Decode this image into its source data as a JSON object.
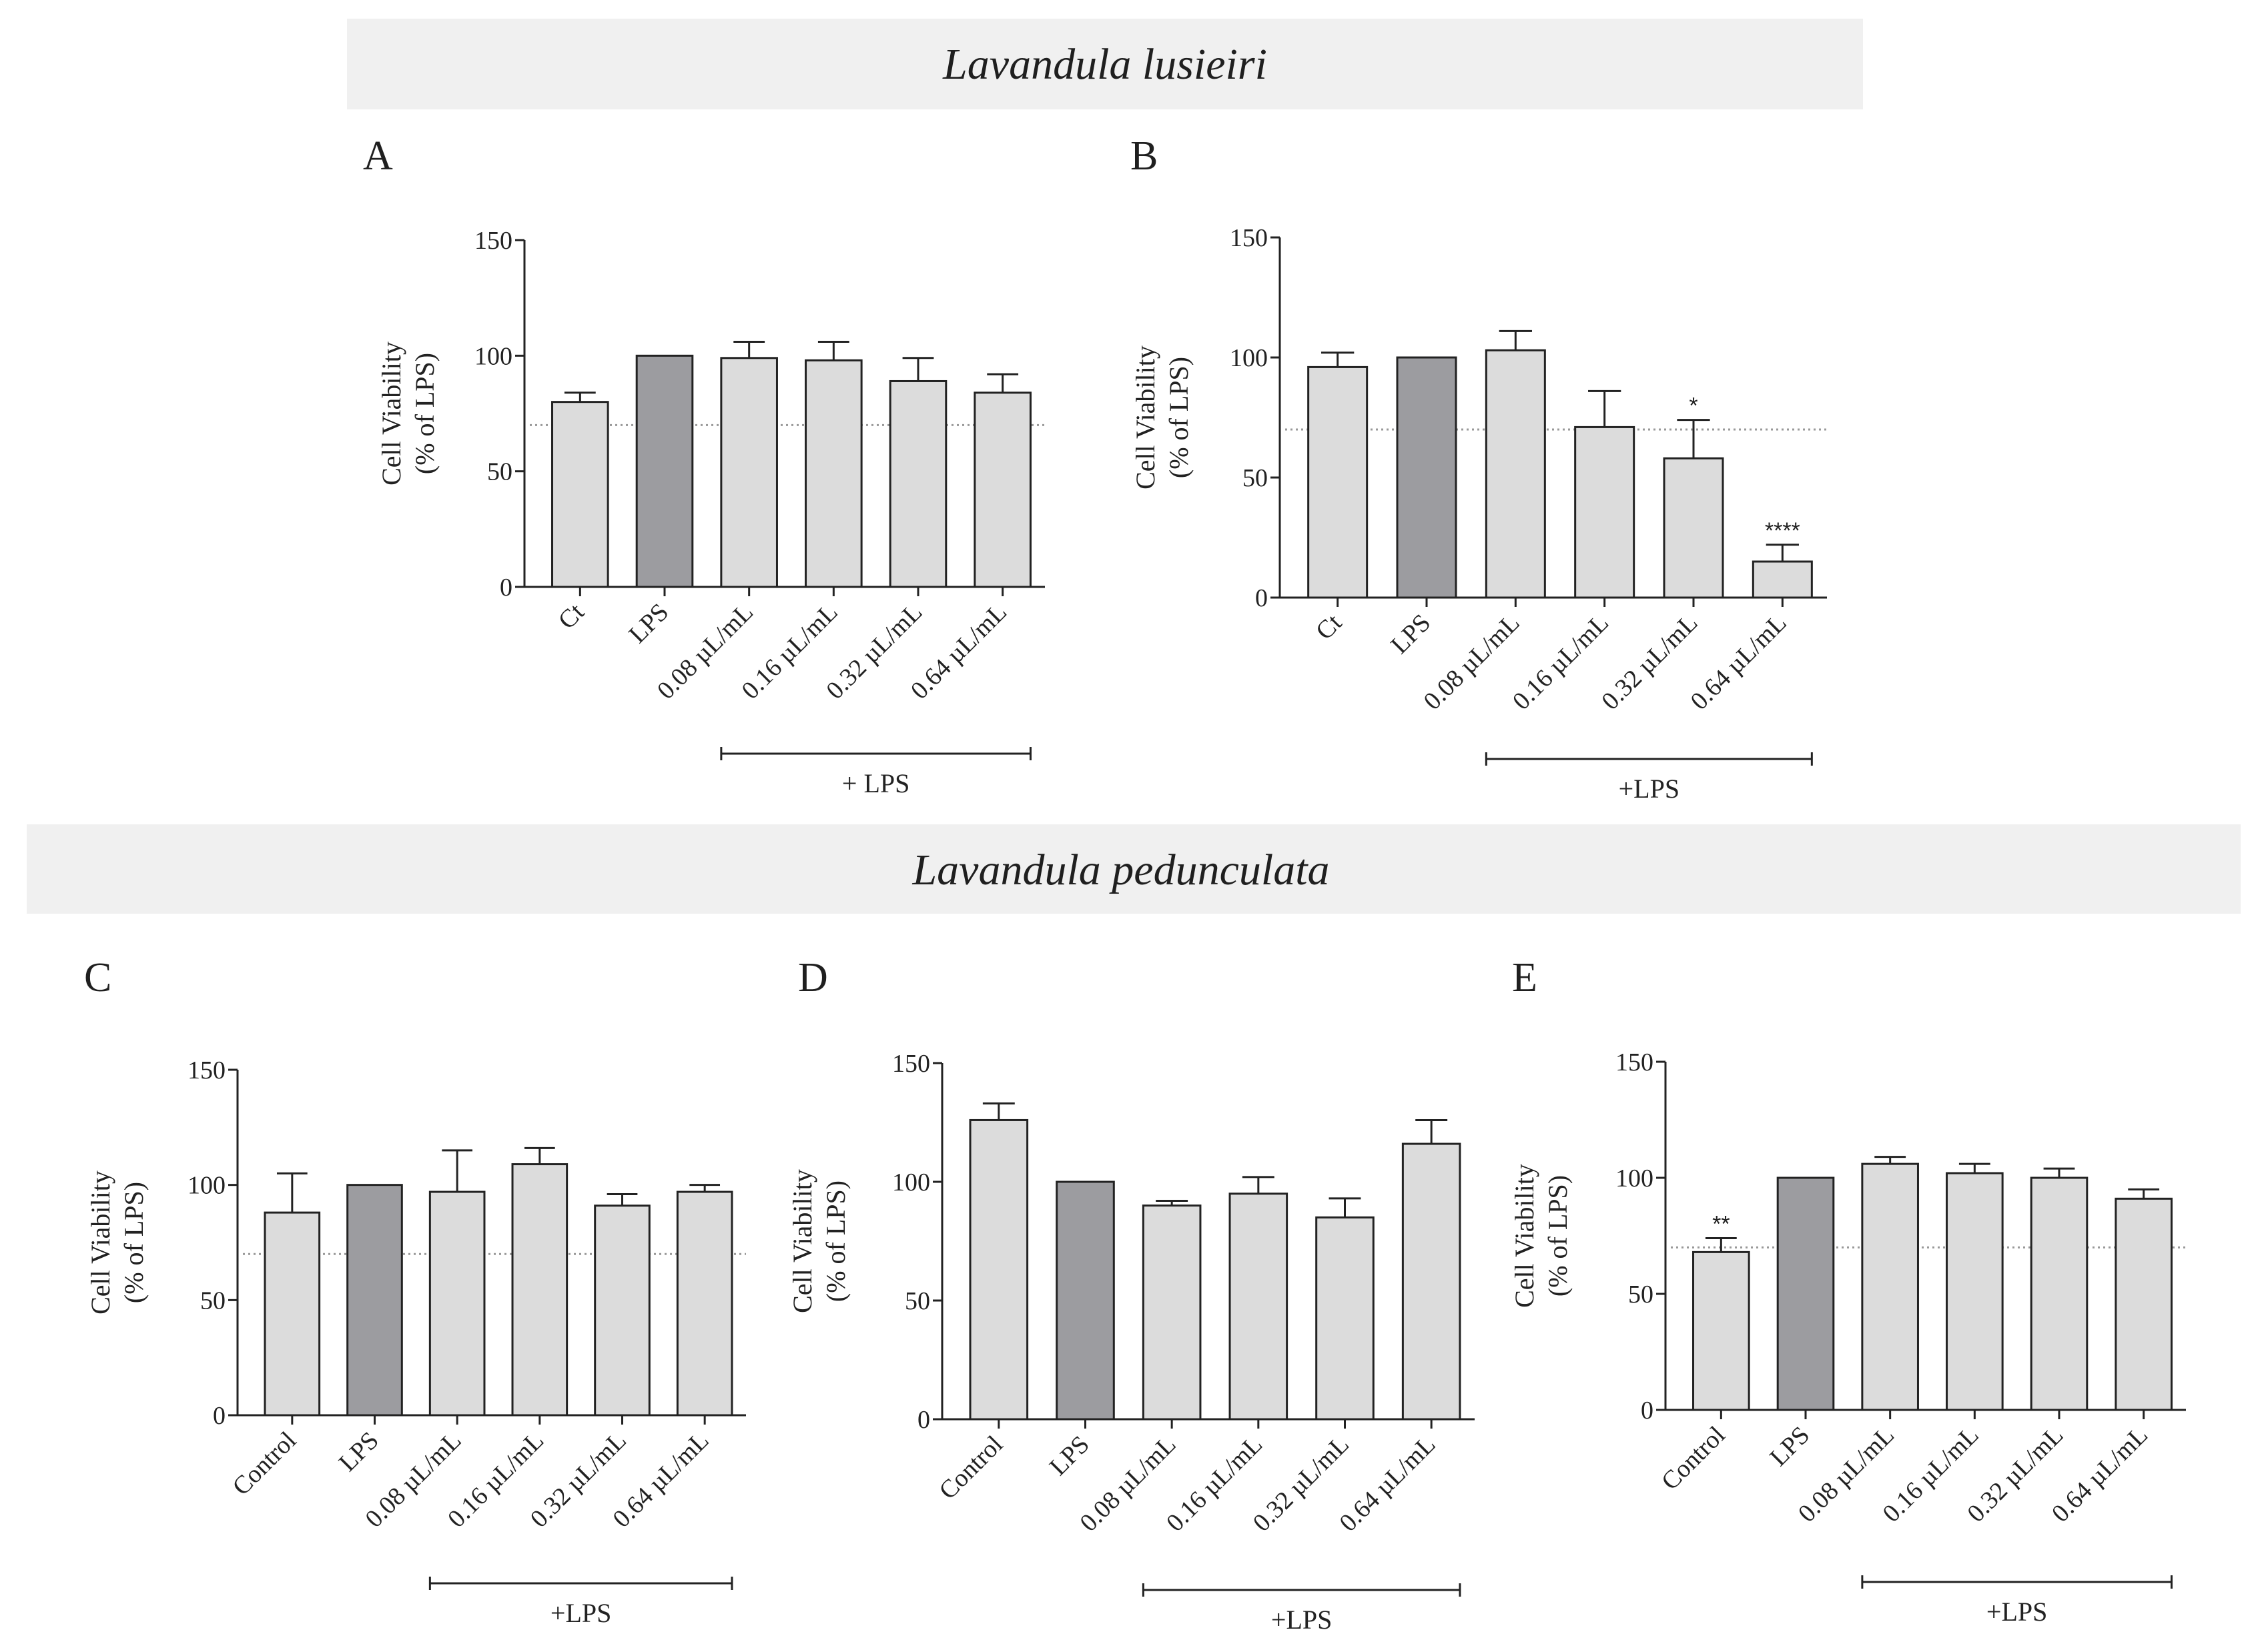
{
  "sections": [
    {
      "title": "Lavandula lusieiri",
      "colors": {
        "band": "#f0f0f0"
      }
    },
    {
      "title": "Lavandula pedunculata",
      "colors": {
        "band": "#f0f0f0"
      }
    }
  ],
  "colors": {
    "bar_light": "#dcdcdc",
    "bar_dark": "#9c9ca0",
    "axis": "#222222",
    "ref_line": "#999999"
  },
  "chart_data": [
    {
      "panel": "A",
      "type": "bar",
      "categories": [
        "Ct",
        "LPS",
        "0.08 µL/mL",
        "0.16 µL/mL",
        "0.32 µL/mL",
        "0.64 µL/mL"
      ],
      "values": [
        80,
        100,
        99,
        98,
        89,
        84
      ],
      "errors": [
        4,
        0,
        7,
        8,
        10,
        8
      ],
      "significance": [
        "",
        "",
        "",
        "",
        "",
        ""
      ],
      "dark_index": 1,
      "ylabel_line1": "Cell Viability",
      "ylabel_line2": "(% of LPS)",
      "ylim": [
        0,
        150
      ],
      "yticks": [
        0,
        50,
        100,
        150
      ],
      "reference_line": 70,
      "group_label": "+ LPS",
      "group_range": [
        2,
        5
      ]
    },
    {
      "panel": "B",
      "type": "bar",
      "categories": [
        "Ct",
        "LPS",
        "0.08 µL/mL",
        "0.16 µL/mL",
        "0.32 µL/mL",
        "0.64 µL/mL"
      ],
      "values": [
        96,
        100,
        103,
        71,
        58,
        15
      ],
      "errors": [
        6,
        0,
        8,
        15,
        16,
        7
      ],
      "significance": [
        "",
        "",
        "",
        "",
        "*",
        "****"
      ],
      "dark_index": 1,
      "ylabel_line1": "Cell Viability",
      "ylabel_line2": "(% of LPS)",
      "ylim": [
        0,
        150
      ],
      "yticks": [
        0,
        50,
        100,
        150
      ],
      "reference_line": 70,
      "group_label": "+LPS",
      "group_range": [
        2,
        5
      ]
    },
    {
      "panel": "C",
      "type": "bar",
      "categories": [
        "Control",
        "LPS",
        "0.08 µL/mL",
        "0.16 µL/mL",
        "0.32 µL/mL",
        "0.64 µL/mL"
      ],
      "values": [
        88,
        100,
        97,
        109,
        91,
        97
      ],
      "errors": [
        17,
        0,
        18,
        7,
        5,
        3
      ],
      "significance": [
        "",
        "",
        "",
        "",
        "",
        ""
      ],
      "dark_index": 1,
      "ylabel_line1": "Cell Viability",
      "ylabel_line2": "(% of LPS)",
      "ylim": [
        0,
        150
      ],
      "yticks": [
        0,
        50,
        100,
        150
      ],
      "reference_line": 70,
      "group_label": "+LPS",
      "group_range": [
        2,
        5
      ]
    },
    {
      "panel": "D",
      "type": "bar",
      "categories": [
        "Control",
        "LPS",
        "0.08 µL/mL",
        "0.16 µL/mL",
        "0.32 µL/mL",
        "0.64 µL/mL"
      ],
      "values": [
        126,
        100,
        90,
        95,
        85,
        116
      ],
      "errors": [
        7,
        0,
        2,
        7,
        8,
        10
      ],
      "significance": [
        "",
        "",
        "",
        "",
        "",
        ""
      ],
      "dark_index": 1,
      "ylabel_line1": "Cell Viability",
      "ylabel_line2": "(% of LPS)",
      "ylim": [
        0,
        150
      ],
      "yticks": [
        0,
        50,
        100,
        150
      ],
      "reference_line": null,
      "group_label": "+LPS",
      "group_range": [
        2,
        5
      ]
    },
    {
      "panel": "E",
      "type": "bar",
      "categories": [
        "Control",
        "LPS",
        "0.08 µL/mL",
        "0.16 µL/mL",
        "0.32 µL/mL",
        "0.64 µL/mL"
      ],
      "values": [
        68,
        100,
        106,
        102,
        100,
        91
      ],
      "errors": [
        6,
        0,
        3,
        4,
        4,
        4
      ],
      "significance": [
        "**",
        "",
        "",
        "",
        "",
        ""
      ],
      "dark_index": 1,
      "ylabel_line1": "Cell Viability",
      "ylabel_line2": "(% of LPS)",
      "ylim": [
        0,
        150
      ],
      "yticks": [
        0,
        50,
        100,
        150
      ],
      "reference_line": 70,
      "group_label": "+LPS",
      "group_range": [
        2,
        5
      ]
    }
  ]
}
